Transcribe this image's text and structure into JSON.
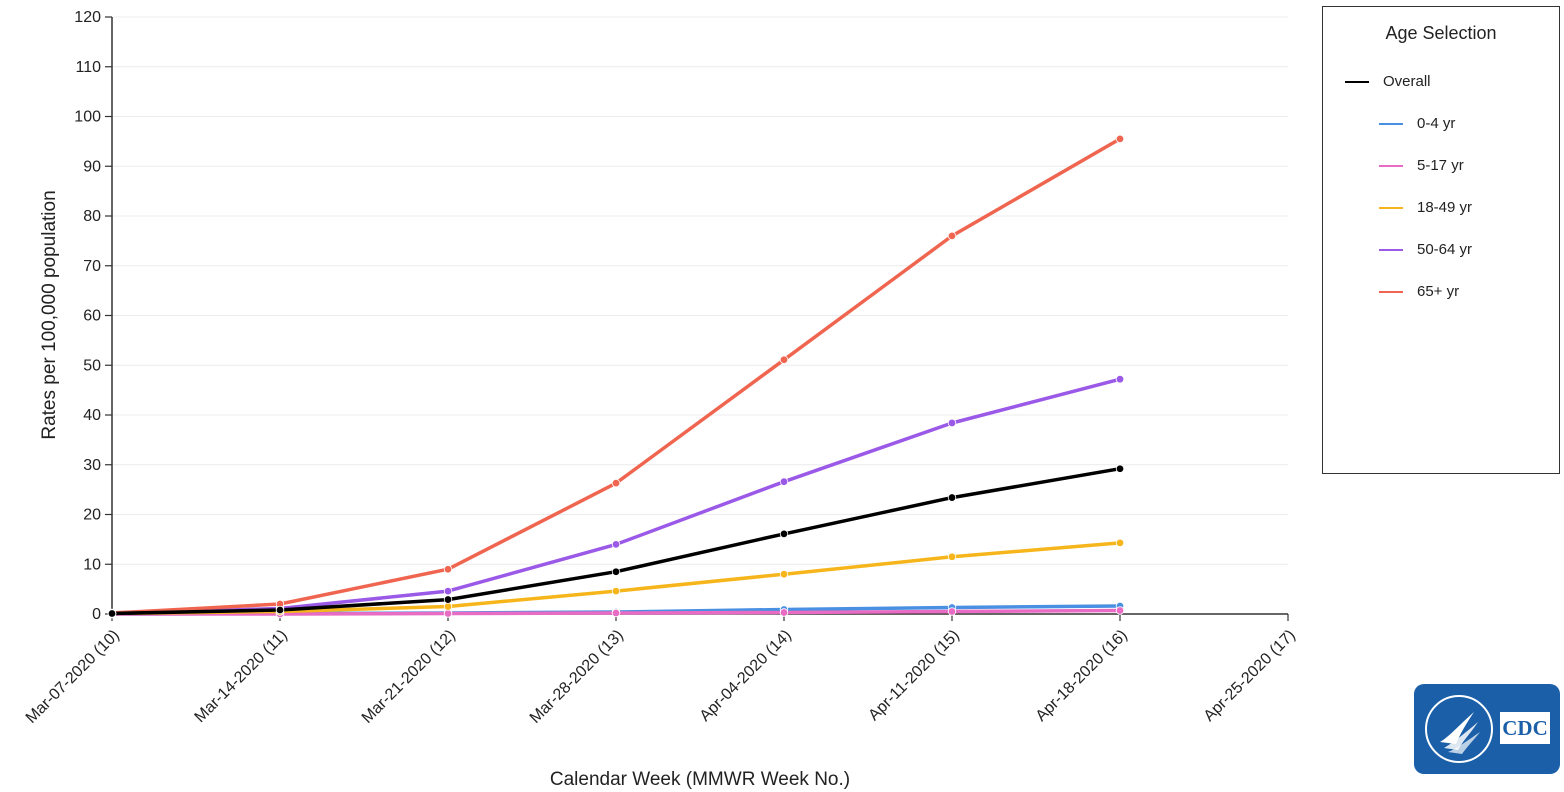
{
  "chart_data": {
    "type": "line",
    "title": "",
    "xlabel": "Calendar Week (MMWR Week No.)",
    "ylabel": "Rates per 100,000 population",
    "ylim": [
      0,
      120
    ],
    "yticks": [
      0,
      10,
      20,
      30,
      40,
      50,
      60,
      70,
      80,
      90,
      100,
      110,
      120
    ],
    "categories": [
      "Mar-07-2020 (10)",
      "Mar-14-2020 (11)",
      "Mar-21-2020 (12)",
      "Mar-28-2020 (13)",
      "Apr-04-2020 (14)",
      "Apr-11-2020 (15)",
      "Apr-18-2020 (16)",
      "Apr-25-2020 (17)"
    ],
    "grid": true,
    "legend_position": "right",
    "legend_title": "Age Selection",
    "series": [
      {
        "name": "Overall",
        "color": "#000000",
        "values": [
          0.1,
          0.8,
          2.9,
          8.5,
          16.1,
          23.4,
          29.2,
          null
        ]
      },
      {
        "name": "0-4 yr",
        "color": "#4a90e2",
        "values": [
          0.0,
          0.1,
          0.2,
          0.4,
          0.9,
          1.3,
          1.6,
          null
        ]
      },
      {
        "name": "5-17 yr",
        "color": "#e86bc4",
        "values": [
          0.0,
          0.0,
          0.1,
          0.2,
          0.3,
          0.5,
          0.7,
          null
        ]
      },
      {
        "name": "18-49 yr",
        "color": "#f7b51c",
        "values": [
          0.1,
          0.5,
          1.5,
          4.6,
          8.0,
          11.5,
          14.3,
          null
        ]
      },
      {
        "name": "50-64 yr",
        "color": "#9b59e8",
        "values": [
          0.1,
          1.1,
          4.6,
          14.0,
          26.6,
          38.4,
          47.2,
          null
        ]
      },
      {
        "name": "65+ yr",
        "color": "#f0654f",
        "values": [
          0.2,
          2.0,
          9.0,
          26.3,
          51.1,
          76.0,
          95.5,
          null
        ]
      }
    ]
  },
  "logo": {
    "text": "CDC",
    "icon": "hhs-eagle-icon",
    "color": "#1b5fa8"
  }
}
